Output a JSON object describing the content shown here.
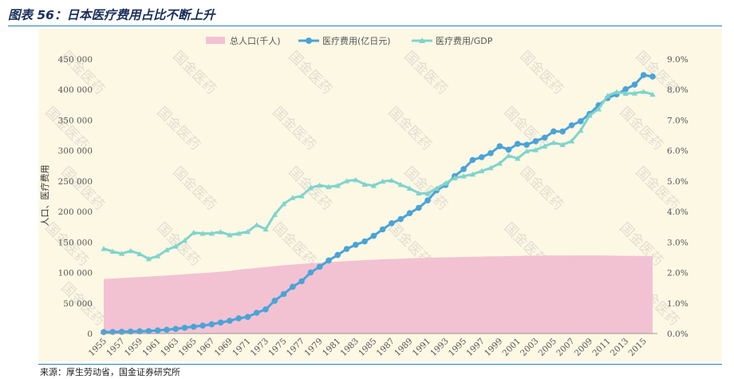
{
  "title": "图表 56：日本医疗费用占比不断上升",
  "source": "来源：厚生劳动省，国金证券研究所",
  "watermark": "国金医药",
  "chart_data": {
    "type": "line",
    "ylabel": "人口、医疗费用",
    "left_ylim": [
      0,
      450000
    ],
    "left_ticks": [
      "0",
      "50 000",
      "100 000",
      "150 000",
      "200 000",
      "250 000",
      "300 000",
      "350 000",
      "400 000",
      "450 000"
    ],
    "right_ylim": [
      0,
      9
    ],
    "right_ticks": [
      "0.0%",
      "1.0%",
      "2.0%",
      "3.0%",
      "4.0%",
      "5.0%",
      "6.0%",
      "7.0%",
      "8.0%",
      "9.0%"
    ],
    "x_tick_labels": [
      "1955",
      "1957",
      "1959",
      "1961",
      "1963",
      "1965",
      "1967",
      "1969",
      "1971",
      "1973",
      "1975",
      "1977",
      "1979",
      "1981",
      "1983",
      "1985",
      "1987",
      "1989",
      "1991",
      "1993",
      "1995",
      "1997",
      "1999",
      "2001",
      "2003",
      "2005",
      "2007",
      "2009",
      "2011",
      "2013",
      "2015"
    ],
    "x": [
      1955,
      1956,
      1957,
      1958,
      1959,
      1960,
      1961,
      1962,
      1963,
      1964,
      1965,
      1966,
      1967,
      1968,
      1969,
      1970,
      1971,
      1972,
      1973,
      1974,
      1975,
      1976,
      1977,
      1978,
      1979,
      1980,
      1981,
      1982,
      1983,
      1984,
      1985,
      1986,
      1987,
      1988,
      1989,
      1990,
      1991,
      1992,
      1993,
      1994,
      1995,
      1996,
      1997,
      1998,
      1999,
      2000,
      2001,
      2002,
      2003,
      2004,
      2005,
      2006,
      2007,
      2008,
      2009,
      2010,
      2011,
      2012,
      2013,
      2014,
      2015,
      2016
    ],
    "legend_position": "top",
    "series": [
      {
        "name": "总人口(千人)",
        "type": "area",
        "axis": "left",
        "color": "#f2c2d2",
        "values": [
          89276,
          90172,
          90928,
          91767,
          92641,
          93419,
          94287,
          95181,
          96156,
          97182,
          98275,
          99036,
          100196,
          101331,
          102536,
          104665,
          106100,
          107595,
          109104,
          110573,
          111940,
          113094,
          114165,
          115190,
          116155,
          117060,
          117902,
          118728,
          119536,
          120305,
          121049,
          121660,
          122239,
          122745,
          123205,
          123611,
          124101,
          124567,
          124938,
          125265,
          125570,
          125864,
          126166,
          126486,
          126686,
          126926,
          127316,
          127486,
          127694,
          127787,
          127768,
          127901,
          128033,
          128084,
          128032,
          128057,
          127834,
          127593,
          127414,
          127237,
          127095,
          126933
        ]
      },
      {
        "name": "医疗费用(亿日元)",
        "type": "line",
        "axis": "left",
        "color": "#4aa3d8",
        "values": [
          2388,
          2598,
          2897,
          3230,
          3625,
          4095,
          5130,
          6132,
          7541,
          9389,
          11224,
          13002,
          15116,
          18016,
          20780,
          24962,
          27250,
          33994,
          39496,
          53786,
          64779,
          76684,
          85686,
          100042,
          109510,
          119805,
          128709,
          138659,
          145438,
          150932,
          160159,
          170690,
          180759,
          187554,
          197290,
          206074,
          218260,
          234784,
          243631,
          257908,
          269577,
          284542,
          289149,
          295823,
          307019,
          301418,
          310998,
          309507,
          315375,
          321111,
          331289,
          331276,
          341360,
          348084,
          360067,
          374202,
          385850,
          392117,
          400610,
          408071,
          423644,
          421381
        ]
      },
      {
        "name": "医疗费用/GDP",
        "type": "line",
        "axis": "right",
        "color": "#7fd4cc",
        "marker": "triangle",
        "values": [
          2.78,
          2.69,
          2.62,
          2.71,
          2.61,
          2.45,
          2.54,
          2.74,
          2.86,
          3.05,
          3.31,
          3.28,
          3.28,
          3.33,
          3.23,
          3.28,
          3.34,
          3.56,
          3.42,
          3.9,
          4.25,
          4.45,
          4.51,
          4.78,
          4.86,
          4.81,
          4.85,
          5.0,
          5.04,
          4.89,
          4.85,
          4.99,
          5.02,
          4.88,
          4.76,
          4.6,
          4.59,
          4.76,
          4.93,
          5.1,
          5.16,
          5.22,
          5.33,
          5.43,
          5.58,
          5.83,
          5.74,
          5.98,
          6.02,
          6.14,
          6.26,
          6.19,
          6.31,
          6.66,
          7.15,
          7.36,
          7.8,
          7.92,
          7.87,
          7.88,
          7.93,
          7.84
        ]
      }
    ]
  }
}
